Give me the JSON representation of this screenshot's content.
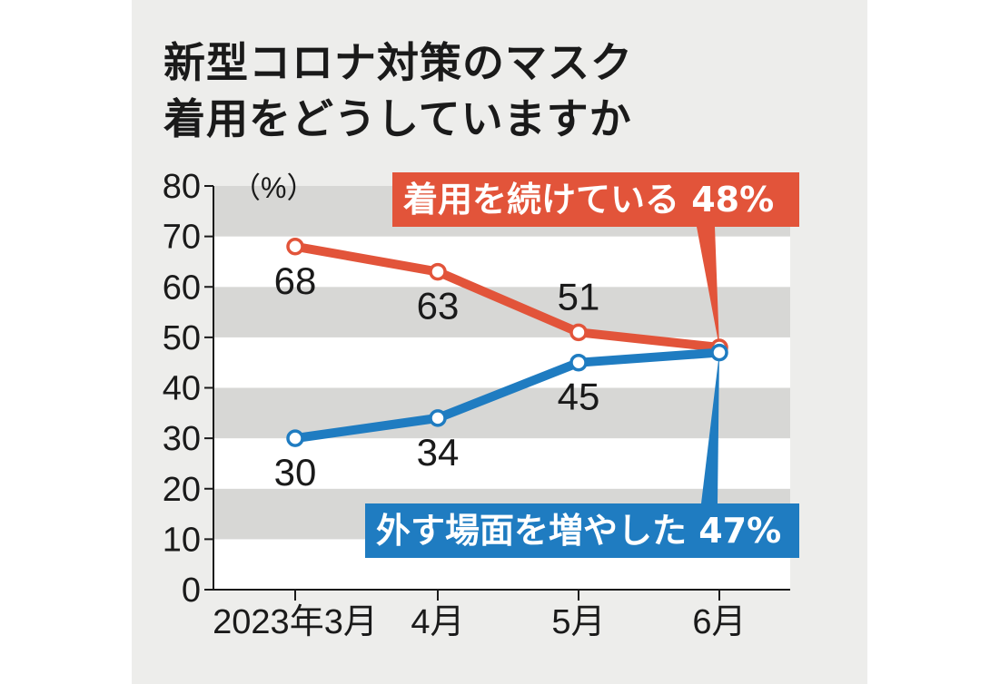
{
  "title_lines": [
    "新型コロナ対策のマスク",
    "着用をどうしていますか"
  ],
  "chart_data": {
    "type": "line",
    "title": "新型コロナ対策のマスク着用をどうしていますか",
    "unit_label": "（%）",
    "categories": [
      "2023年3月",
      "4月",
      "5月",
      "6月"
    ],
    "ylim": [
      0,
      80
    ],
    "yticks": [
      0,
      10,
      20,
      30,
      40,
      50,
      60,
      70,
      80
    ],
    "grid": "alternating horizontal bands",
    "series": [
      {
        "name": "着用を続けている",
        "color": "#e2543a",
        "values": [
          68,
          63,
          51,
          48
        ],
        "point_labels": [
          "68",
          "63",
          "51",
          ""
        ],
        "callout": "着用を続けている 48%"
      },
      {
        "name": "外す場面を増やした",
        "color": "#1f7cc1",
        "values": [
          30,
          34,
          45,
          47
        ],
        "point_labels": [
          "30",
          "34",
          "45",
          ""
        ],
        "callout": "外す場面を増やした 47%"
      }
    ]
  }
}
